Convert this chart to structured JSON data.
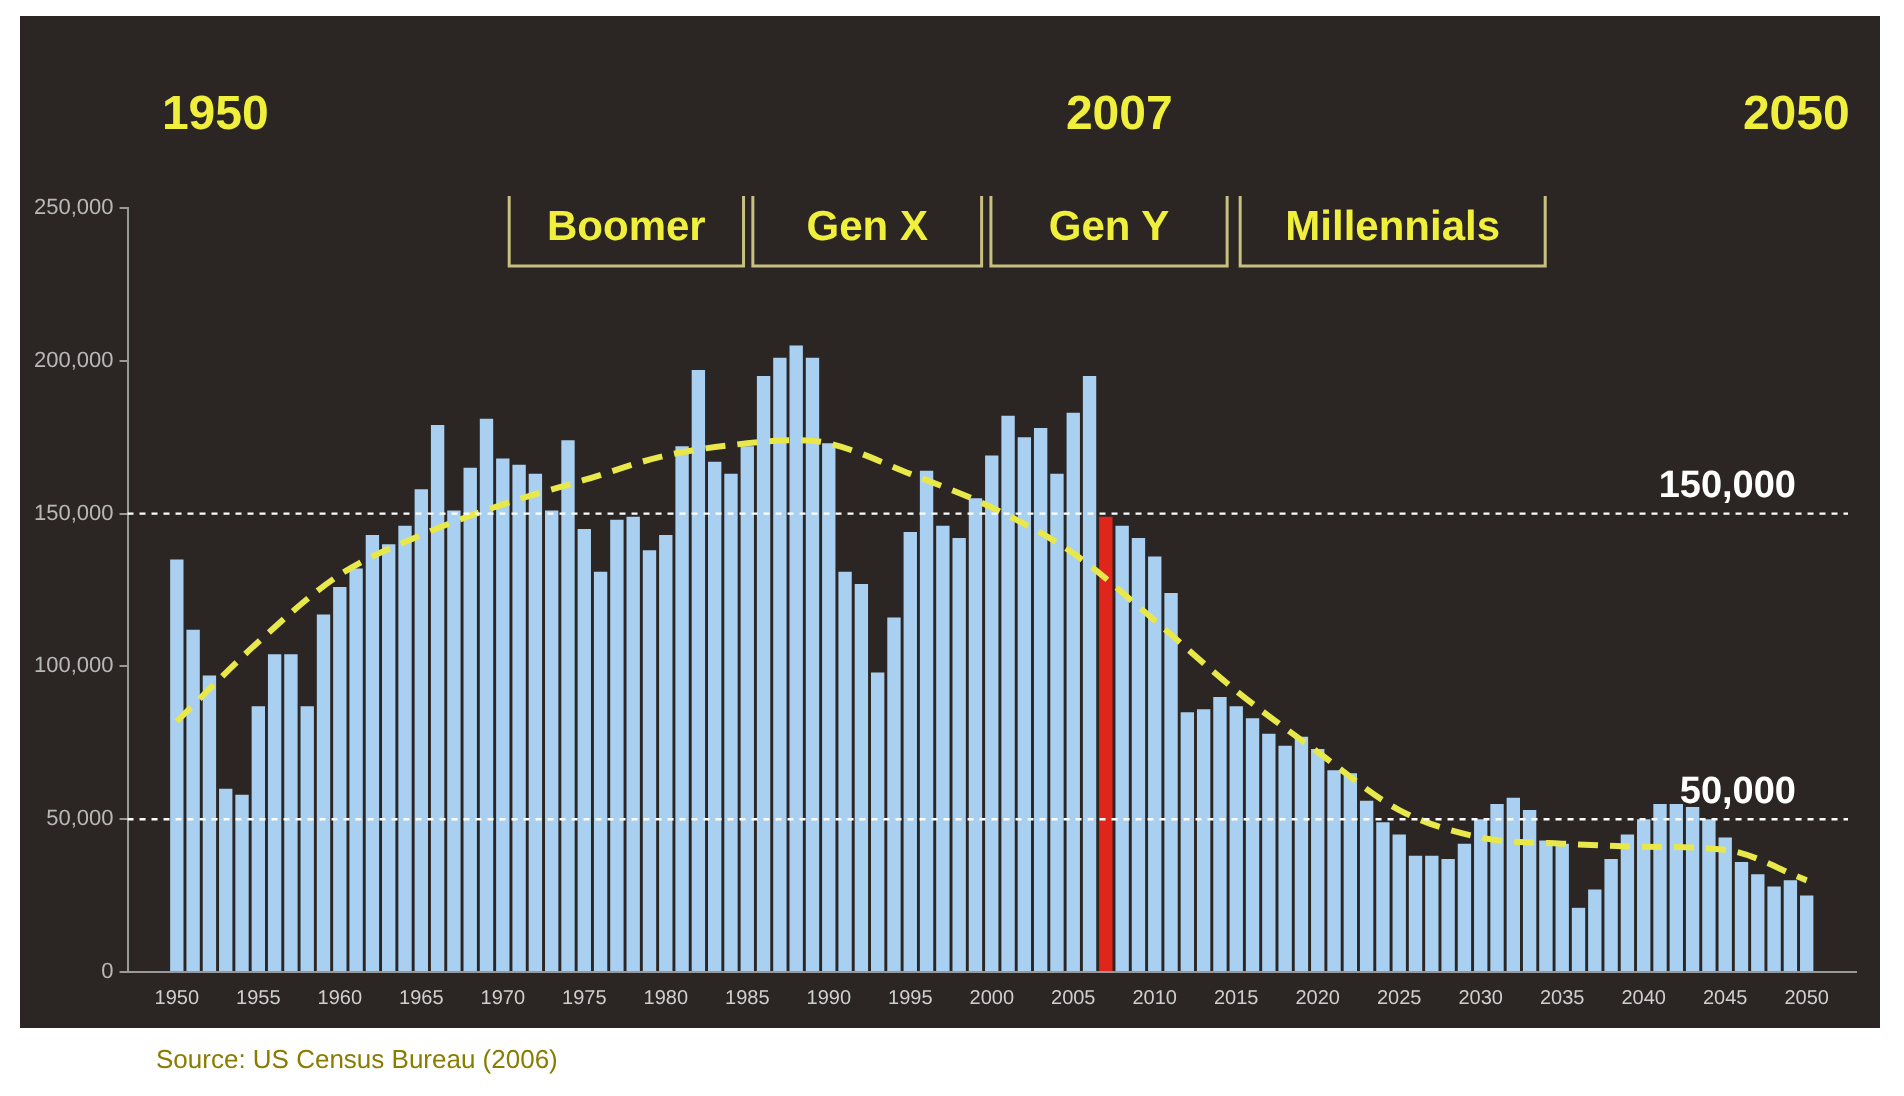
{
  "chart_data": {
    "type": "bar",
    "x": [
      1950,
      1951,
      1952,
      1953,
      1954,
      1955,
      1956,
      1957,
      1958,
      1959,
      1960,
      1961,
      1962,
      1963,
      1964,
      1965,
      1966,
      1967,
      1968,
      1969,
      1970,
      1971,
      1972,
      1973,
      1974,
      1975,
      1976,
      1977,
      1978,
      1979,
      1980,
      1981,
      1982,
      1983,
      1984,
      1985,
      1986,
      1987,
      1988,
      1989,
      1990,
      1991,
      1992,
      1993,
      1994,
      1995,
      1996,
      1997,
      1998,
      1999,
      2000,
      2001,
      2002,
      2003,
      2004,
      2005,
      2006,
      2007,
      2008,
      2009,
      2010,
      2011,
      2012,
      2013,
      2014,
      2015,
      2016,
      2017,
      2018,
      2019,
      2020,
      2021,
      2022,
      2023,
      2024,
      2025,
      2026,
      2027,
      2028,
      2029,
      2030,
      2031,
      2032,
      2033,
      2034,
      2035,
      2036,
      2037,
      2038,
      2039,
      2040,
      2041,
      2042,
      2043,
      2044,
      2045,
      2046,
      2047,
      2048,
      2049,
      2050
    ],
    "series": [
      {
        "values": [
          135000,
          112000,
          97000,
          60000,
          58000,
          87000,
          104000,
          104000,
          87000,
          117000,
          126000,
          132000,
          143000,
          140000,
          146000,
          158000,
          179000,
          151000,
          165000,
          181000,
          168000,
          166000,
          163000,
          151000,
          174000,
          145000,
          131000,
          148000,
          149000,
          138000,
          143000,
          172000,
          197000,
          167000,
          163000,
          172000,
          195000,
          201000,
          205000,
          201000,
          173000,
          131000,
          127000,
          98000,
          116000,
          144000,
          164000,
          146000,
          142000,
          155000,
          169000,
          182000,
          175000,
          178000,
          163000,
          183000,
          195000,
          149000,
          146000,
          142000,
          136000,
          124000,
          85000,
          86000,
          90000,
          87000,
          83000,
          78000,
          74000,
          77000,
          73000,
          66000,
          65000,
          56000,
          49000,
          45000,
          38000,
          38000,
          37000,
          42000,
          50000,
          55000,
          57000,
          53000,
          43000,
          42000,
          21000,
          27000,
          37000,
          45000,
          50000,
          55000,
          55000,
          54000,
          50000,
          44000,
          36000,
          32000,
          28000,
          30000,
          25000
        ],
        "colors": [
          "#a9d0f0",
          "#a9d0f0",
          "#a9d0f0",
          "#a9d0f0",
          "#a9d0f0",
          "#a9d0f0",
          "#a9d0f0",
          "#a9d0f0",
          "#a9d0f0",
          "#a9d0f0",
          "#a9d0f0",
          "#a9d0f0",
          "#a9d0f0",
          "#a9d0f0",
          "#a9d0f0",
          "#a9d0f0",
          "#a9d0f0",
          "#a9d0f0",
          "#a9d0f0",
          "#a9d0f0",
          "#a9d0f0",
          "#a9d0f0",
          "#a9d0f0",
          "#a9d0f0",
          "#a9d0f0",
          "#a9d0f0",
          "#a9d0f0",
          "#a9d0f0",
          "#a9d0f0",
          "#a9d0f0",
          "#a9d0f0",
          "#a9d0f0",
          "#a9d0f0",
          "#a9d0f0",
          "#a9d0f0",
          "#a9d0f0",
          "#a9d0f0",
          "#a9d0f0",
          "#a9d0f0",
          "#a9d0f0",
          "#a9d0f0",
          "#a9d0f0",
          "#a9d0f0",
          "#a9d0f0",
          "#a9d0f0",
          "#a9d0f0",
          "#a9d0f0",
          "#a9d0f0",
          "#a9d0f0",
          "#a9d0f0",
          "#a9d0f0",
          "#a9d0f0",
          "#a9d0f0",
          "#a9d0f0",
          "#a9d0f0",
          "#a9d0f0",
          "#a9d0f0",
          "#e0251b",
          "#a9d0f0",
          "#a9d0f0",
          "#a9d0f0",
          "#a9d0f0",
          "#a9d0f0",
          "#a9d0f0",
          "#a9d0f0",
          "#a9d0f0",
          "#a9d0f0",
          "#a9d0f0",
          "#a9d0f0",
          "#a9d0f0",
          "#a9d0f0",
          "#a9d0f0",
          "#a9d0f0",
          "#a9d0f0",
          "#a9d0f0",
          "#a9d0f0",
          "#a9d0f0",
          "#a9d0f0",
          "#a9d0f0",
          "#a9d0f0",
          "#a9d0f0",
          "#a9d0f0",
          "#a9d0f0",
          "#a9d0f0",
          "#a9d0f0",
          "#a9d0f0",
          "#a9d0f0",
          "#a9d0f0",
          "#a9d0f0",
          "#a9d0f0",
          "#a9d0f0",
          "#a9d0f0",
          "#a9d0f0",
          "#a9d0f0",
          "#a9d0f0",
          "#a9d0f0",
          "#a9d0f0",
          "#a9d0f0",
          "#a9d0f0",
          "#a9d0f0",
          "#a9d0f0"
        ]
      },
      {
        "type": "line",
        "color": "#e8e84a",
        "line_style": "dashed",
        "marker": "none",
        "x": [
          1950,
          1955,
          1960,
          1965,
          1970,
          1975,
          1980,
          1985,
          1988,
          1990,
          1995,
          2000,
          2005,
          2010,
          2015,
          2020,
          2025,
          2030,
          2035,
          2040,
          2045,
          2050
        ],
        "values": [
          82000,
          108000,
          130000,
          143000,
          153000,
          161000,
          169000,
          173000,
          174000,
          173000,
          163000,
          152000,
          137000,
          115000,
          92000,
          72000,
          53000,
          44000,
          42000,
          41000,
          40000,
          30000
        ]
      }
    ],
    "xlim": [
      1949.5,
      2050.5
    ],
    "xticks": [
      1950,
      1955,
      1960,
      1965,
      1970,
      1975,
      1980,
      1985,
      1990,
      1995,
      2000,
      2005,
      2010,
      2015,
      2020,
      2025,
      2030,
      2035,
      2040,
      2045,
      2050
    ],
    "ylim": [
      0,
      250000
    ],
    "yticks": [
      0,
      {
        "value": 50000,
        "label": "50,000"
      },
      {
        "value": 100000,
        "label": "100,000"
      },
      {
        "value": 150000,
        "label": "150,000"
      },
      {
        "value": 200000,
        "label": "200,000"
      },
      {
        "value": 250000,
        "label": "250,000"
      }
    ],
    "grid": false,
    "legend": false,
    "ref_lines": [
      {
        "axis": "y",
        "value": 150000,
        "label": "150,000",
        "color": "#ffffff",
        "line_style": "dotted"
      },
      {
        "axis": "y",
        "value": 50000,
        "label": "50,000",
        "color": "#ffffff",
        "line_style": "dotted"
      }
    ],
    "annotations": [
      "1950",
      "2007",
      "2050",
      "Boomer",
      "Gen X",
      "Gen Y",
      "Millennials",
      "Source: US Census Bureau (2006)"
    ]
  }
}
